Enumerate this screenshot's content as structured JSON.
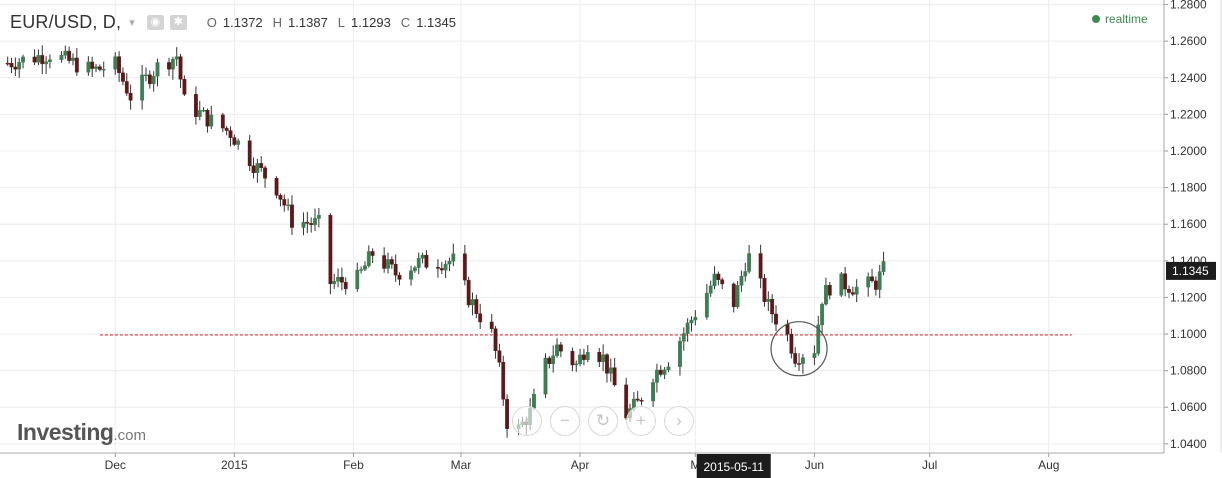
{
  "header": {
    "symbol": "EUR/USD, D,",
    "caret": "▾",
    "ohlc": {
      "o_label": "O",
      "o": "1.1372",
      "h_label": "H",
      "h": "1.1387",
      "l_label": "L",
      "l": "1.1293",
      "c_label": "C",
      "c": "1.1345"
    },
    "icons": [
      "eye-icon",
      "gear-icon"
    ]
  },
  "realtime": "realtime",
  "logo": {
    "name": "Investing",
    "suffix": ".com"
  },
  "nav_icons": [
    "chevron-left-icon",
    "minus-icon",
    "reset-icon",
    "plus-icon",
    "chevron-right-icon"
  ],
  "colors": {
    "up": "#3d7d52",
    "down": "#5b1a1a",
    "grid": "#ececec",
    "support_line": "#e0353d",
    "label_bg": "#1c1c1c",
    "realtime": "#3c8b4e"
  },
  "chart_data": {
    "type": "candlestick",
    "title": "EUR/USD, D,",
    "y_ticks": [
      "1.2800",
      "1.2600",
      "1.2400",
      "1.2200",
      "1.2000",
      "1.1800",
      "1.1600",
      "1.1400",
      "1.1200",
      "1.1000",
      "1.0800",
      "1.0600",
      "1.0400"
    ],
    "ylim": [
      1.035,
      1.2825
    ],
    "x_ticks": [
      {
        "label": "Dec",
        "date": "2014-12-01"
      },
      {
        "label": "2015",
        "date": "2015-01-01"
      },
      {
        "label": "Feb",
        "date": "2015-02-01"
      },
      {
        "label": "Mar",
        "date": "2015-03-01"
      },
      {
        "label": "Apr",
        "date": "2015-04-01"
      },
      {
        "label": "M",
        "date": "2015-05-01"
      },
      {
        "label": "Jun",
        "date": "2015-06-01"
      },
      {
        "label": "Jul",
        "date": "2015-07-01"
      },
      {
        "label": "Aug",
        "date": "2015-08-01"
      }
    ],
    "xlim": [
      "2014-11-01",
      "2015-08-31"
    ],
    "last_price": "1.1345",
    "crosshair_date": "2015-05-11",
    "support_level": 1.0995,
    "support_range": [
      "2014-11-27",
      "2015-08-07"
    ],
    "annotation_circle": {
      "date": "2015-05-28",
      "value": 1.092
    },
    "anchors": [
      [
        "2014-11-03",
        1.248
      ],
      [
        "2014-11-14",
        1.253
      ],
      [
        "2014-11-25",
        1.244
      ],
      [
        "2014-12-01",
        1.247
      ],
      [
        "2014-12-05",
        1.23
      ],
      [
        "2014-12-12",
        1.246
      ],
      [
        "2014-12-17",
        1.252
      ],
      [
        "2014-12-19",
        1.227
      ],
      [
        "2014-12-24",
        1.219
      ],
      [
        "2014-12-31",
        1.21
      ],
      [
        "2015-01-06",
        1.193
      ],
      [
        "2015-01-12",
        1.18
      ],
      [
        "2015-01-16",
        1.162
      ],
      [
        "2015-01-23",
        1.16
      ],
      [
        "2015-01-26",
        1.128
      ],
      [
        "2015-02-02",
        1.13
      ],
      [
        "2015-02-06",
        1.144
      ],
      [
        "2015-02-12",
        1.133
      ],
      [
        "2015-02-18",
        1.139
      ],
      [
        "2015-02-27",
        1.14
      ],
      [
        "2015-03-03",
        1.12
      ],
      [
        "2015-03-09",
        1.1
      ],
      [
        "2015-03-11",
        1.08
      ],
      [
        "2015-03-13",
        1.052
      ],
      [
        "2015-03-16",
        1.048
      ],
      [
        "2015-03-19",
        1.057
      ],
      [
        "2015-03-23",
        1.083
      ],
      [
        "2015-03-26",
        1.093
      ],
      [
        "2015-03-31",
        1.083
      ],
      [
        "2015-04-03",
        1.095
      ],
      [
        "2015-04-07",
        1.087
      ],
      [
        "2015-04-13",
        1.056
      ],
      [
        "2015-04-16",
        1.062
      ],
      [
        "2015-04-20",
        1.078
      ],
      [
        "2015-04-24",
        1.086
      ],
      [
        "2015-04-30",
        1.108
      ],
      [
        "2015-05-06",
        1.13
      ],
      [
        "2015-05-11",
        1.117
      ],
      [
        "2015-05-14",
        1.139
      ],
      [
        "2015-05-15",
        1.142
      ],
      [
        "2015-05-20",
        1.115
      ],
      [
        "2015-05-25",
        1.099
      ],
      [
        "2015-05-27",
        1.088
      ],
      [
        "2015-06-01",
        1.092
      ],
      [
        "2015-06-03",
        1.12
      ],
      [
        "2015-06-05",
        1.126
      ],
      [
        "2015-06-08",
        1.128
      ],
      [
        "2015-06-12",
        1.125
      ],
      [
        "2015-06-17",
        1.128
      ],
      [
        "2015-06-19",
        1.135
      ]
    ]
  }
}
